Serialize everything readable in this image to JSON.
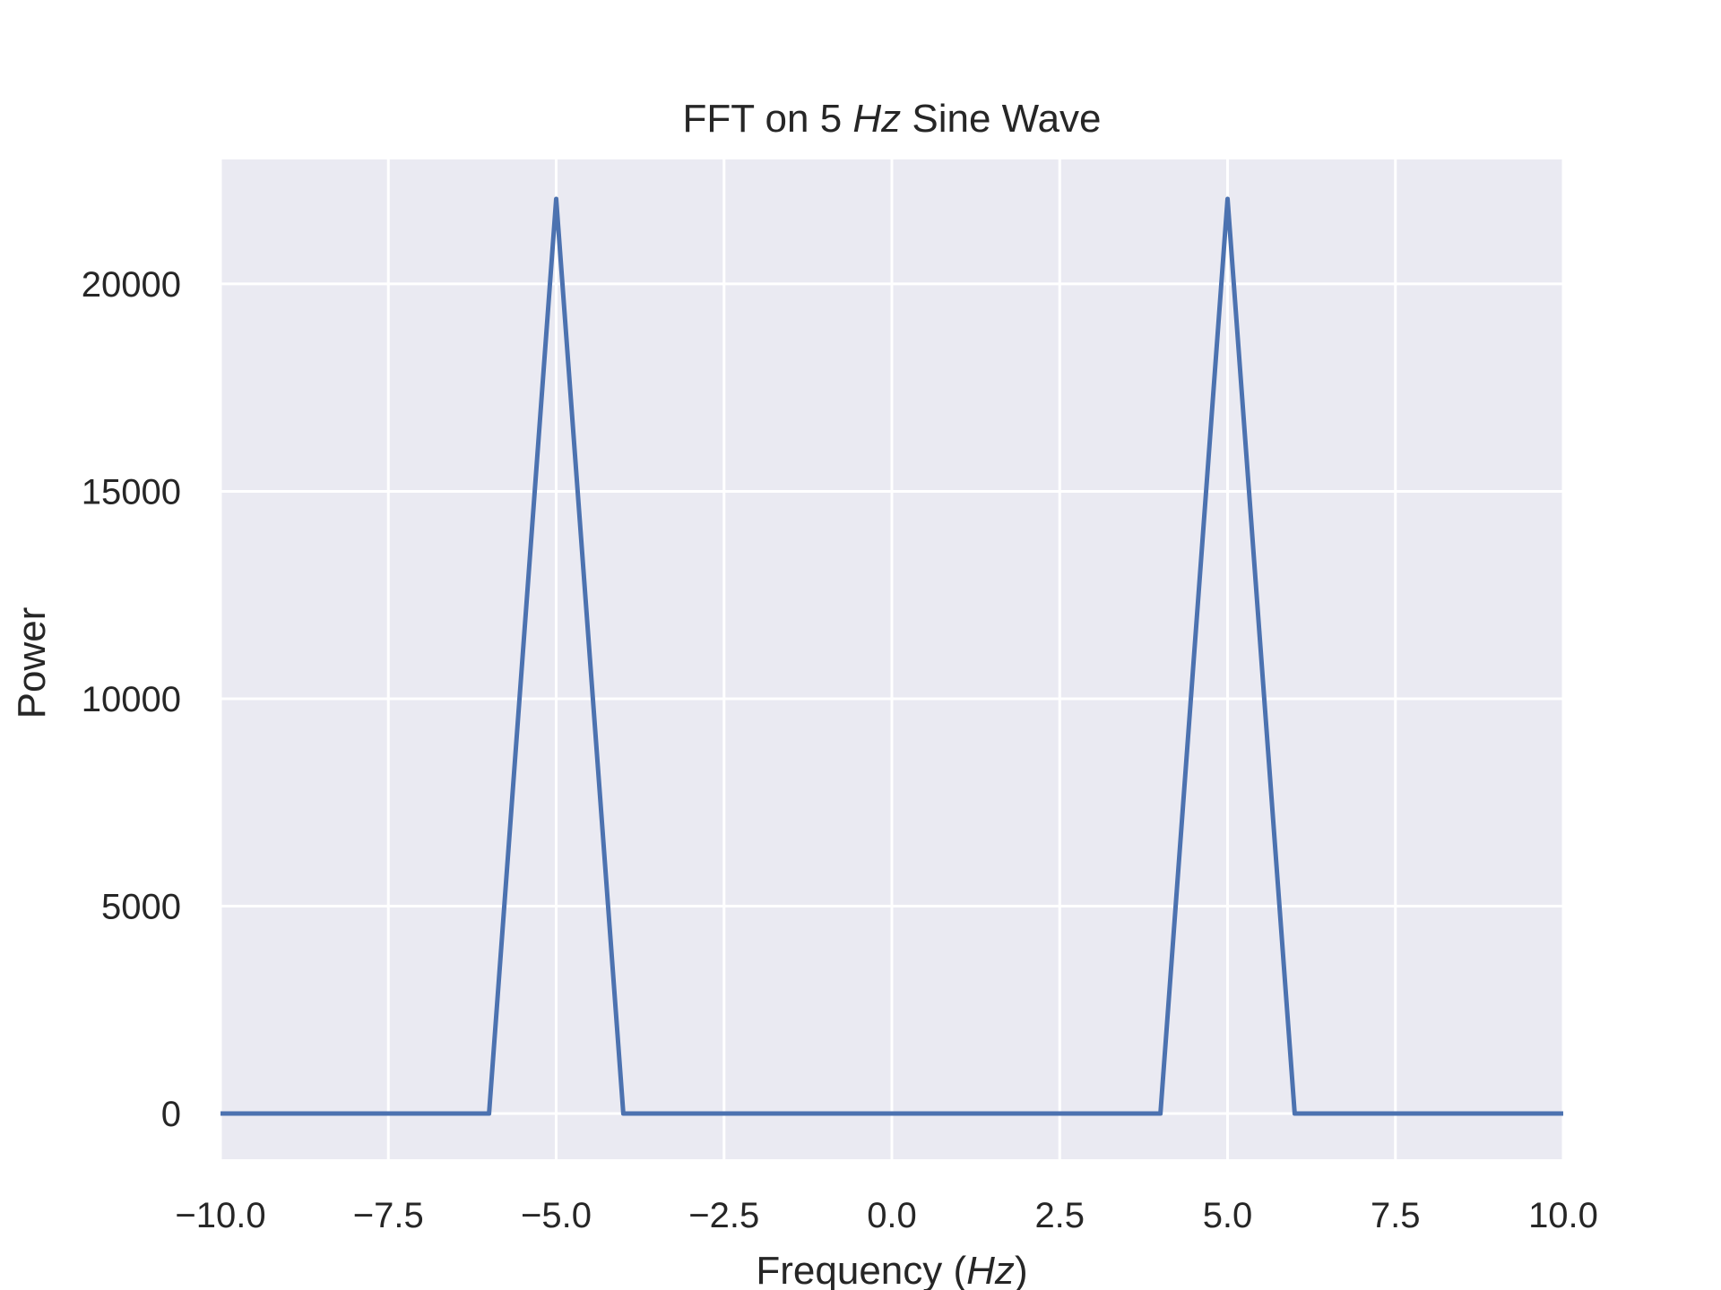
{
  "chart_data": {
    "type": "line",
    "title": "FFT on 5 Hz Sine Wave",
    "title_parts": {
      "before": "FFT on 5 ",
      "italic": "Hz",
      "after": " Sine Wave"
    },
    "xlabel": "Frequency (Hz)",
    "xlabel_parts": {
      "before": "Frequency (",
      "italic": "Hz",
      "after": ")"
    },
    "ylabel": "Power",
    "xlim": [
      -10,
      10
    ],
    "ylim": [
      -1100,
      23000
    ],
    "xticks": [
      -10.0,
      -7.5,
      -5.0,
      -2.5,
      0.0,
      2.5,
      5.0,
      7.5,
      10.0
    ],
    "xtick_labels": [
      "−10.0",
      "−7.5",
      "−5.0",
      "−2.5",
      "0.0",
      "2.5",
      "5.0",
      "7.5",
      "10.0"
    ],
    "yticks": [
      0,
      5000,
      10000,
      15000,
      20000
    ],
    "ytick_labels": [
      "0",
      "5000",
      "10000",
      "15000",
      "20000"
    ],
    "grid": true,
    "background_color": "#eaeaf2",
    "grid_color": "#ffffff",
    "series": [
      {
        "color": "#4c72b0",
        "x": [
          -10,
          -6,
          -5,
          -4,
          4,
          5,
          6,
          10
        ],
        "y": [
          0,
          0,
          22050,
          0,
          0,
          22050,
          0,
          0
        ]
      }
    ]
  }
}
